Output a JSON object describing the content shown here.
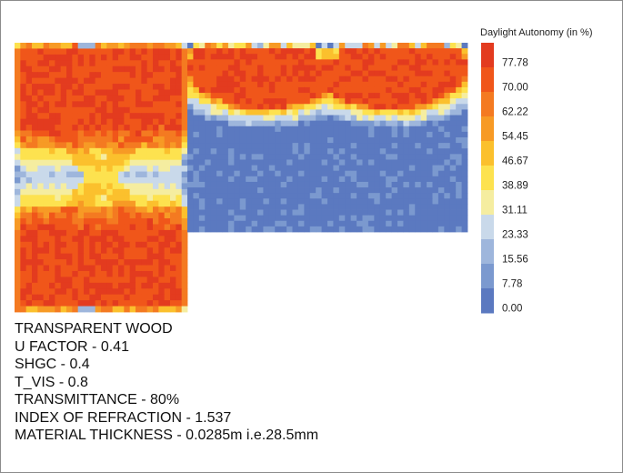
{
  "chart_data": {
    "type": "heatmap",
    "title": "",
    "colorbar": {
      "title": "Daylight Autonomy (in %)",
      "ticks": [
        "77.78",
        "70.00",
        "62.22",
        "54.45",
        "46.67",
        "38.89",
        "31.11",
        "23.33",
        "15.56",
        "7.78",
        "0.00"
      ],
      "range": [
        0,
        85
      ],
      "colors": [
        "#e33b1f",
        "#f0561a",
        "#f47a21",
        "#f79a25",
        "#fbc02d",
        "#fde24f",
        "#f5eda0",
        "#c9d9ea",
        "#9eb6dc",
        "#7b99cf",
        "#5b79c0"
      ]
    },
    "zones": [
      {
        "name": "left room",
        "description_values": "high DA near both ends (~75-80), mixed ~25-55 in the middle band"
      },
      {
        "name": "right room",
        "description_values": "high DA upper part (~70-80) forming two lobes, drops to ~5 in lower part"
      }
    ]
  },
  "notes": [
    "TRANSPARENT WOOD",
    "U FACTOR - 0.41",
    "SHGC - 0.4",
    "T_VIS - 0.8",
    "TRANSMITTANCE - 80%",
    "INDEX OF REFRACTION - 1.537",
    "MATERIAL THICKNESS - 0.0285m i.e.28.5mm"
  ]
}
